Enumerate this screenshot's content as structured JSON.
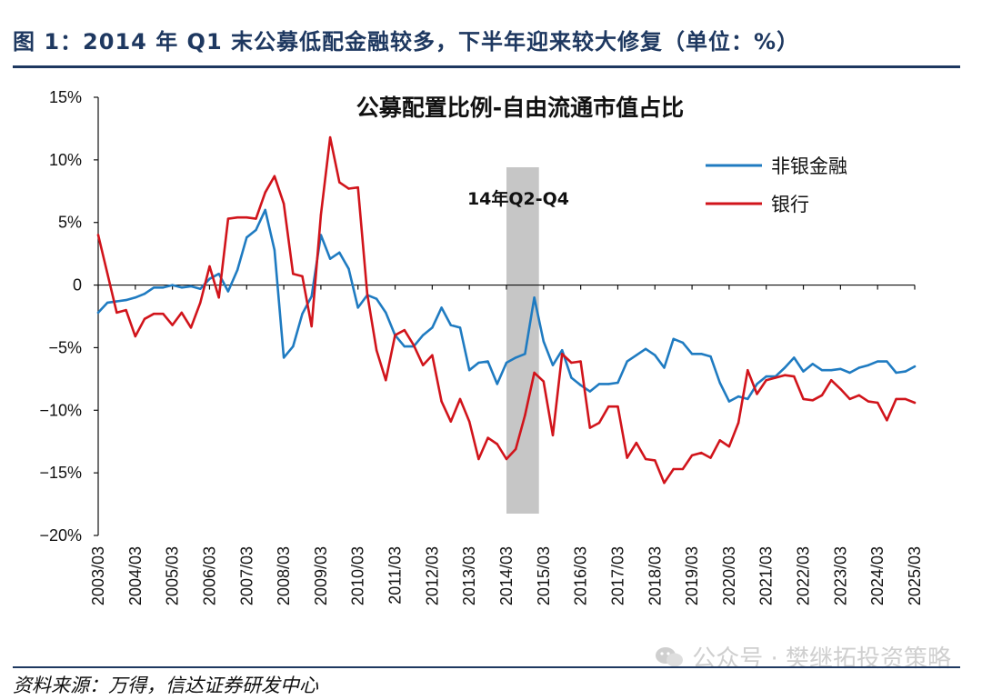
{
  "figure": {
    "title": "图 1：2014 年 Q1 末公募低配金融较多，下半年迎来较大修复（单位：%）",
    "source": "资料来源：万得，信达证券研发中心",
    "watermark": "公众号 · 樊继拓投资策略"
  },
  "chart_data": {
    "type": "line",
    "title": "公募配置比例-自由流通市值占比",
    "xlabel": "",
    "ylabel": "",
    "ylim": [
      -20,
      15
    ],
    "yticks": [
      15,
      10,
      5,
      0,
      -5,
      -10,
      -15,
      -20
    ],
    "ytick_labels": [
      "15%",
      "10%",
      "5%",
      "0",
      "−5%",
      "−10%",
      "−15%",
      "−20%"
    ],
    "x_start": "2003Q1",
    "x_end": "2025Q1",
    "x_ticks": [
      {
        "label": "2003/03",
        "index": 0
      },
      {
        "label": "2004/03",
        "index": 4
      },
      {
        "label": "2005/03",
        "index": 8
      },
      {
        "label": "2006/03",
        "index": 12
      },
      {
        "label": "2007/03",
        "index": 16
      },
      {
        "label": "2008/03",
        "index": 20
      },
      {
        "label": "2009/03",
        "index": 24
      },
      {
        "label": "2010/03",
        "index": 28
      },
      {
        "label": "2011/03",
        "index": 32
      },
      {
        "label": "2012/03",
        "index": 36
      },
      {
        "label": "2013/03",
        "index": 40
      },
      {
        "label": "2014/03",
        "index": 44
      },
      {
        "label": "2015/03",
        "index": 48
      },
      {
        "label": "2016/03",
        "index": 52
      },
      {
        "label": "2017/03",
        "index": 56
      },
      {
        "label": "2018/03",
        "index": 60
      },
      {
        "label": "2019/03",
        "index": 64
      },
      {
        "label": "2020/03",
        "index": 68
      },
      {
        "label": "2021/03",
        "index": 72
      },
      {
        "label": "2022/03",
        "index": 76
      },
      {
        "label": "2023/03",
        "index": 80
      },
      {
        "label": "2024/03",
        "index": 84
      },
      {
        "label": "2025/03",
        "index": 88
      }
    ],
    "shaded_region": {
      "label": "14年Q2-Q4",
      "from_index": 44,
      "to_index": 47.5,
      "color": "#c6c6c6"
    },
    "legend_position": "top-right",
    "series": [
      {
        "name": "非银金融",
        "color": "#1f7bc1",
        "values": [
          -2.2,
          -1.4,
          -1.3,
          -1.2,
          -1.0,
          -0.7,
          -0.2,
          -0.2,
          0.0,
          -0.2,
          -0.1,
          -0.3,
          0.5,
          0.9,
          -0.5,
          1.2,
          3.8,
          4.4,
          6.0,
          2.8,
          -5.8,
          -4.9,
          -2.3,
          -0.9,
          4.0,
          2.1,
          2.6,
          1.3,
          -1.8,
          -0.8,
          -1.1,
          -2.2,
          -4.0,
          -4.9,
          -4.9,
          -4.0,
          -3.4,
          -1.8,
          -3.2,
          -3.4,
          -6.8,
          -6.2,
          -6.1,
          -7.9,
          -6.2,
          -5.8,
          -5.5,
          -1.0,
          -4.5,
          -6.4,
          -5.2,
          -7.4,
          -8.0,
          -8.5,
          -7.9,
          -7.9,
          -7.8,
          -6.1,
          -5.6,
          -5.1,
          -5.6,
          -6.6,
          -4.3,
          -4.6,
          -5.5,
          -5.5,
          -5.7,
          -7.8,
          -9.3,
          -8.9,
          -9.1,
          -7.9,
          -7.3,
          -7.3,
          -6.6,
          -5.8,
          -6.9,
          -6.3,
          -6.8,
          -6.8,
          -6.7,
          -7.0,
          -6.6,
          -6.4,
          -6.1,
          -6.1,
          -7.0,
          -6.9,
          -6.5
        ]
      },
      {
        "name": "银行",
        "color": "#d1141b",
        "values": [
          4.0,
          0.9,
          -2.2,
          -2.0,
          -4.1,
          -2.7,
          -2.3,
          -2.3,
          -3.2,
          -2.2,
          -3.4,
          -1.4,
          1.5,
          -1.0,
          5.3,
          5.4,
          5.4,
          5.3,
          7.4,
          8.7,
          6.5,
          0.9,
          0.7,
          -3.3,
          5.6,
          11.8,
          8.2,
          7.7,
          7.8,
          -0.7,
          -5.2,
          -7.6,
          -4.0,
          -3.6,
          -4.8,
          -6.4,
          -5.6,
          -9.3,
          -10.9,
          -9.1,
          -10.9,
          -13.9,
          -12.2,
          -12.7,
          -13.9,
          -13.1,
          -10.4,
          -7.0,
          -7.7,
          -12.0,
          -5.5,
          -6.2,
          -6.1,
          -11.4,
          -11.0,
          -9.7,
          -9.7,
          -13.8,
          -12.6,
          -13.9,
          -14.0,
          -15.8,
          -14.7,
          -14.7,
          -13.6,
          -13.4,
          -13.8,
          -12.4,
          -12.9,
          -11.0,
          -6.8,
          -8.7,
          -7.6,
          -7.4,
          -7.2,
          -7.3,
          -9.1,
          -9.2,
          -8.8,
          -7.6,
          -8.3,
          -9.1,
          -8.8,
          -9.3,
          -9.4,
          -10.8,
          -9.1,
          -9.1,
          -9.4
        ]
      }
    ]
  }
}
